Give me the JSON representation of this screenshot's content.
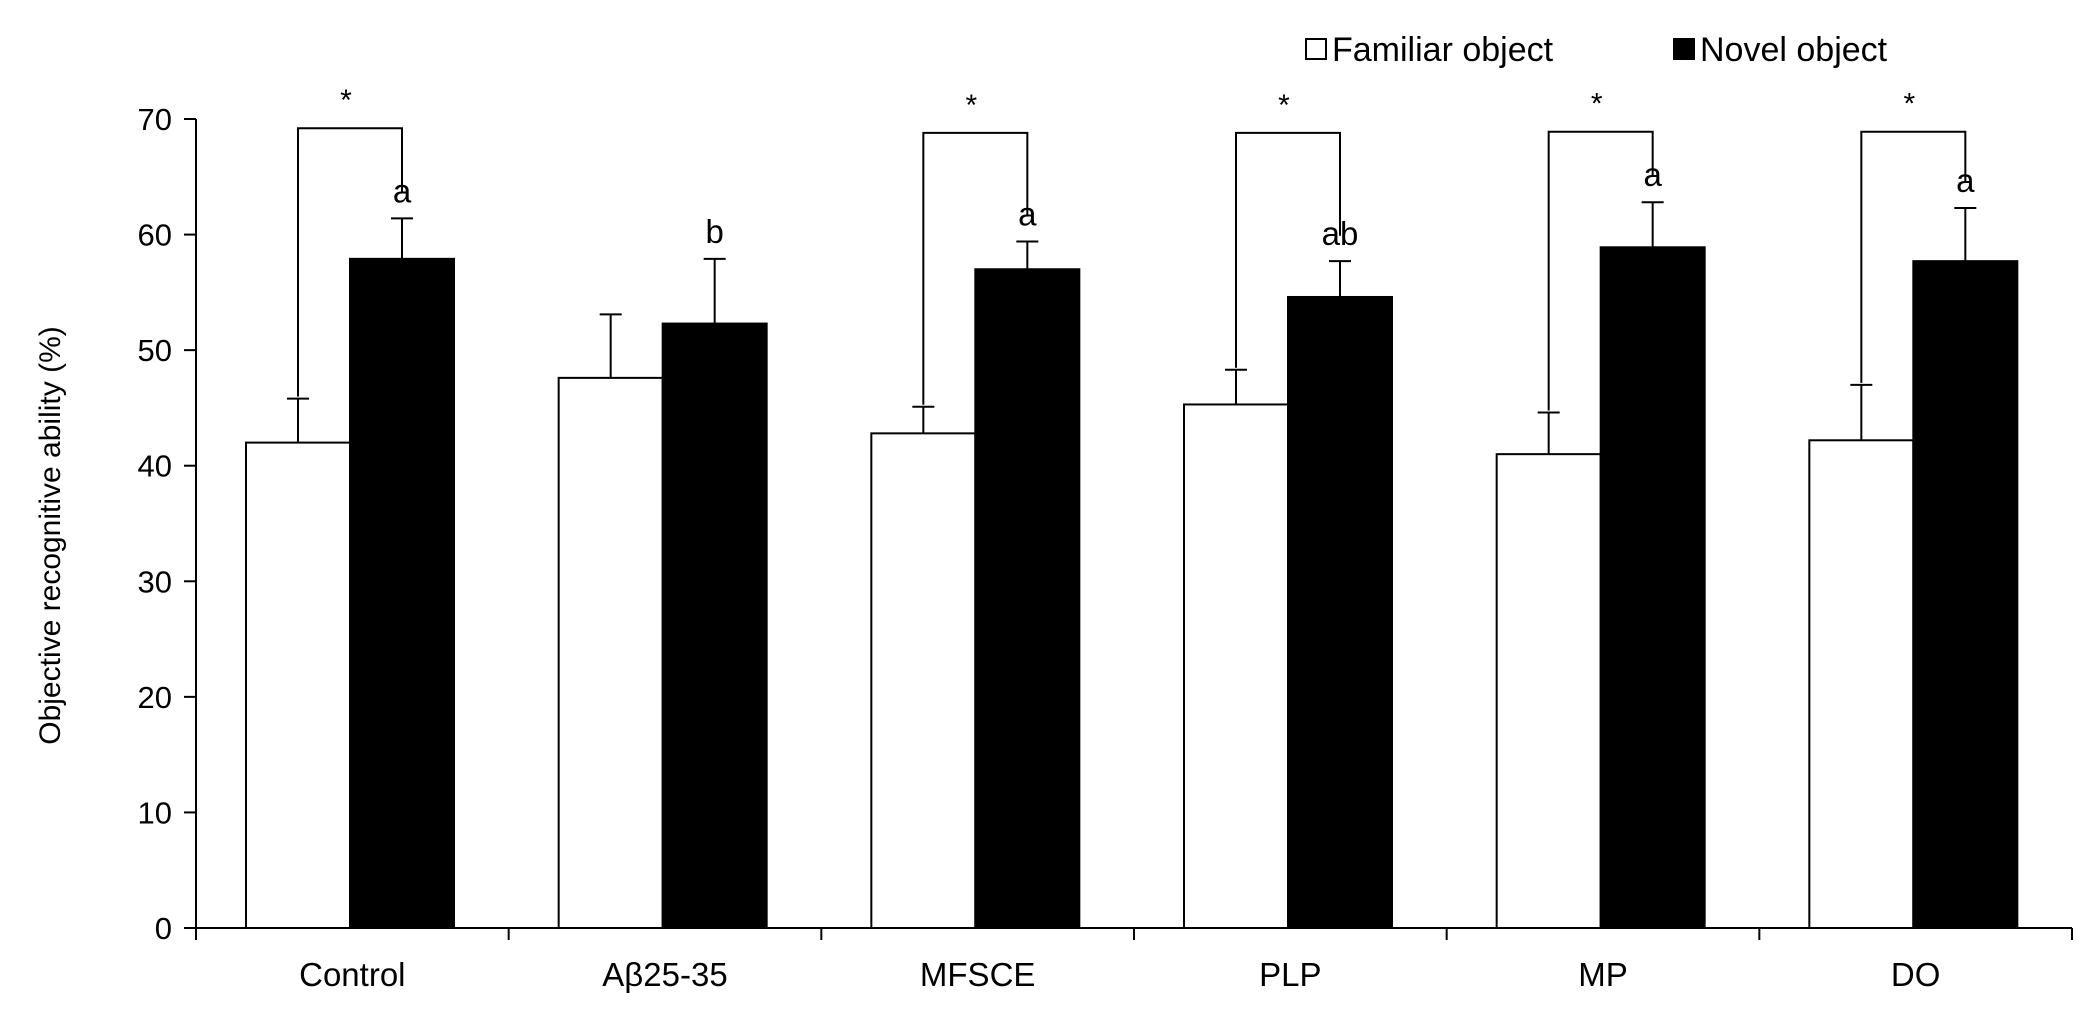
{
  "chart_data": {
    "type": "bar",
    "title": "",
    "xlabel": "",
    "ylabel": "Objective recognitive ability (%)",
    "ylim": [
      0,
      70
    ],
    "yticks": [
      0,
      10,
      20,
      30,
      40,
      50,
      60,
      70
    ],
    "grid": false,
    "legend_position": "top-right",
    "categories": [
      "Control",
      "Aβ25-35",
      "MFSCE",
      "PLP",
      "MP",
      "DO"
    ],
    "series": [
      {
        "name": "Familiar object",
        "color": "#ffffff",
        "values": [
          42.0,
          47.6,
          42.8,
          45.3,
          41.0,
          42.2
        ],
        "errors": [
          3.8,
          5.5,
          2.3,
          3.0,
          3.6,
          4.8
        ]
      },
      {
        "name": "Novel object",
        "color": "#000000",
        "values": [
          57.9,
          52.3,
          57.0,
          54.6,
          58.9,
          57.7
        ],
        "errors": [
          3.5,
          5.6,
          2.4,
          3.1,
          3.9,
          4.6
        ]
      }
    ],
    "significance_letters": [
      "a",
      "b",
      "a",
      "ab",
      "a",
      "a"
    ],
    "significance_brackets": [
      {
        "category_index": 0,
        "label": "*",
        "level": 69.2
      },
      {
        "category_index": 2,
        "label": "*",
        "level": 68.8
      },
      {
        "category_index": 3,
        "label": "*",
        "level": 68.8
      },
      {
        "category_index": 4,
        "label": "*",
        "level": 68.9
      },
      {
        "category_index": 5,
        "label": "*",
        "level": 68.9
      }
    ]
  }
}
